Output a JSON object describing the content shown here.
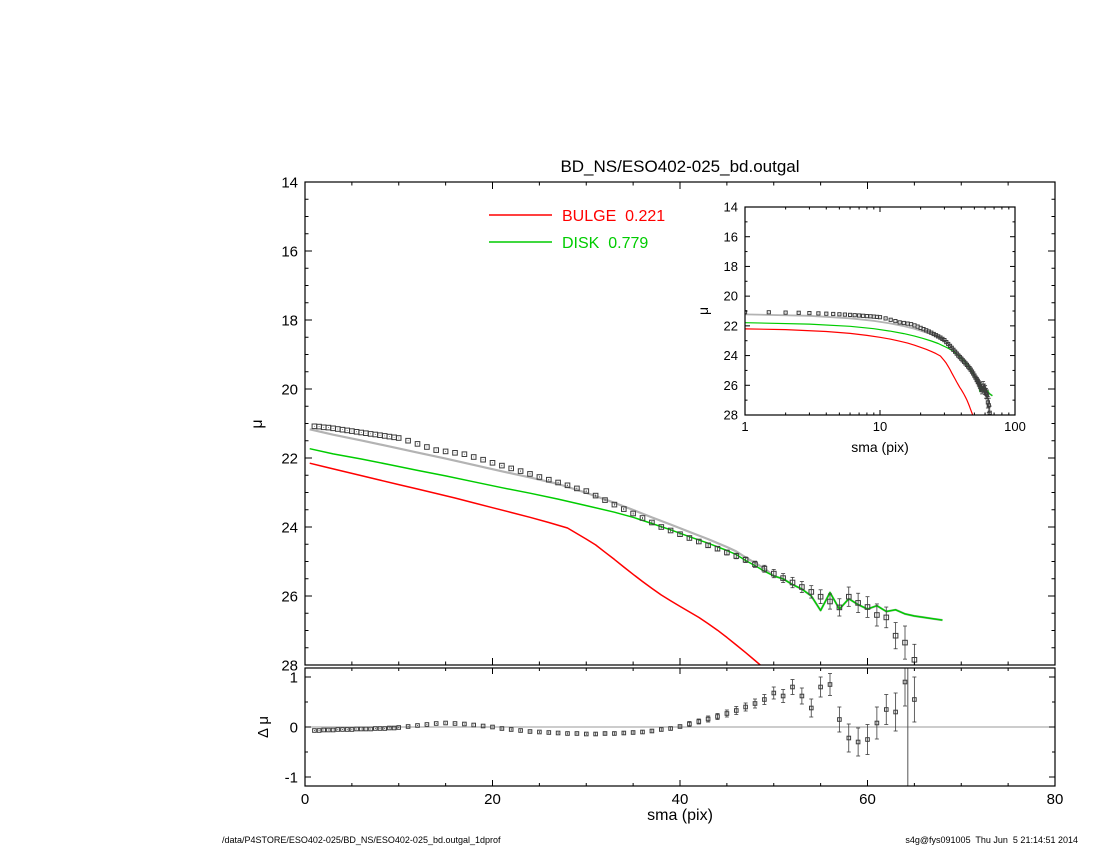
{
  "page": {
    "footer_left": "/data/P4STORE/ESO402-025/BD_NS/ESO402-025_bd.outgal_1dprof",
    "footer_right": "s4g@fys091005  Thu Jun  5 21:14:51 2014"
  },
  "colors": {
    "bulge": "#ff0000",
    "disk": "#00cc00",
    "data_points": "#3c3c3c",
    "total_model": "#b3b3b3",
    "axis": "#000000"
  },
  "chart_data": {
    "panels": [
      {
        "id": "main",
        "type": "line+scatter",
        "title": "BD_NS/ESO402-025_bd.outgal",
        "xlabel": "",
        "ylabel": "μ",
        "xlim": [
          0,
          80
        ],
        "xlog": false,
        "ytop": 14,
        "ybottom": 28,
        "xticks": [
          0,
          20,
          40,
          60,
          80
        ],
        "xminor": 5,
        "yticks": [
          14,
          16,
          18,
          20,
          22,
          24,
          26,
          28
        ],
        "yminor": 0.5,
        "legend": [
          {
            "label": "BULGE  0.221",
            "color": "#ff0000"
          },
          {
            "label": "DISK  0.779",
            "color": "#00cc00"
          }
        ],
        "series": [
          {
            "dataset": "total",
            "kind": "line",
            "color": "#b3b3b3",
            "width": 2.2,
            "name": "total-model-line"
          },
          {
            "dataset": "bulge",
            "kind": "line",
            "color": "#ff0000",
            "width": 1.5,
            "name": "bulge-line"
          },
          {
            "dataset": "disk",
            "kind": "line",
            "color": "#00cc00",
            "width": 1.5,
            "name": "disk-line"
          },
          {
            "dataset": "observed",
            "kind": "scatter",
            "color": "#3c3c3c",
            "size": 4.6,
            "errorbars": true,
            "name": "observed-points"
          }
        ]
      },
      {
        "id": "inset",
        "type": "line+scatter",
        "title": "",
        "xlabel": "sma (pix)",
        "ylabel": "μ",
        "xlim": [
          1,
          100
        ],
        "xlog": true,
        "ytop": 14,
        "ybottom": 28,
        "xticks": [
          1,
          10,
          100
        ],
        "yticks": [
          14,
          16,
          18,
          20,
          22,
          24,
          26,
          28
        ],
        "yminor": 1,
        "series": [
          {
            "dataset": "total",
            "kind": "line",
            "color": "#b3b3b3",
            "width": 1.8,
            "name": "total-model-line-inset"
          },
          {
            "dataset": "bulge",
            "kind": "line",
            "color": "#ff0000",
            "width": 1.2,
            "name": "bulge-line-inset"
          },
          {
            "dataset": "disk",
            "kind": "line",
            "color": "#00cc00",
            "width": 1.2,
            "name": "disk-line-inset"
          },
          {
            "dataset": "observed",
            "kind": "scatter",
            "color": "#3c3c3c",
            "size": 3.2,
            "errorbars": true,
            "name": "observed-points-inset"
          }
        ]
      },
      {
        "id": "residual",
        "type": "scatter",
        "title": "",
        "xlabel": "sma (pix)",
        "ylabel": "Δ μ",
        "xlim": [
          0,
          80
        ],
        "xlog": false,
        "ytop": 1.18,
        "ybottom": -1.18,
        "xticks": [
          0,
          20,
          40,
          60,
          80
        ],
        "xminor": 5,
        "yticks": [
          -1,
          0,
          1
        ],
        "yminor": 0.5,
        "hlines": [
          0
        ],
        "vlines": [
          64.3
        ],
        "series": [
          {
            "dataset": "residual",
            "kind": "scatter",
            "color": "#3c3c3c",
            "size": 3.6,
            "errorbars": true,
            "name": "residual-points"
          }
        ]
      }
    ],
    "datasets": {
      "observed": {
        "x": [
          1,
          1.5,
          2,
          2.5,
          3,
          3.5,
          4,
          4.5,
          5,
          5.5,
          6,
          6.5,
          7,
          7.5,
          8,
          8.5,
          9,
          9.5,
          10,
          11,
          12,
          13,
          14,
          15,
          16,
          17,
          18,
          19,
          20,
          21,
          22,
          23,
          24,
          25,
          26,
          27,
          28,
          29,
          30,
          31,
          32,
          33,
          34,
          35,
          36,
          37,
          38,
          39,
          40,
          41,
          42,
          43,
          44,
          45,
          46,
          47,
          48,
          49,
          50,
          51,
          52,
          53,
          54,
          55,
          56,
          57,
          58,
          59,
          60,
          61,
          62,
          63,
          64,
          65
        ],
        "y": [
          21.08,
          21.09,
          21.11,
          21.12,
          21.14,
          21.16,
          21.18,
          21.2,
          21.22,
          21.24,
          21.26,
          21.28,
          21.3,
          21.32,
          21.34,
          21.36,
          21.38,
          21.4,
          21.42,
          21.5,
          21.59,
          21.68,
          21.77,
          21.81,
          21.85,
          21.89,
          21.97,
          22.05,
          22.14,
          22.22,
          22.3,
          22.38,
          22.46,
          22.55,
          22.63,
          22.71,
          22.79,
          22.88,
          22.96,
          23.09,
          23.22,
          23.35,
          23.48,
          23.61,
          23.74,
          23.87,
          24.0,
          24.1,
          24.21,
          24.32,
          24.42,
          24.53,
          24.63,
          24.74,
          24.84,
          24.95,
          25.08,
          25.21,
          25.35,
          25.48,
          25.61,
          25.74,
          25.88,
          26.02,
          26.16,
          26.33,
          26.02,
          26.2,
          26.32,
          26.55,
          26.62,
          27.15,
          27.35,
          27.85
        ],
        "err": [
          0.01,
          0.01,
          0.01,
          0.01,
          0.01,
          0.01,
          0.01,
          0.01,
          0.01,
          0.01,
          0.01,
          0.01,
          0.01,
          0.01,
          0.01,
          0.01,
          0.01,
          0.01,
          0.01,
          0.01,
          0.01,
          0.01,
          0.01,
          0.01,
          0.01,
          0.01,
          0.01,
          0.01,
          0.01,
          0.02,
          0.02,
          0.02,
          0.02,
          0.02,
          0.02,
          0.02,
          0.02,
          0.02,
          0.02,
          0.03,
          0.03,
          0.03,
          0.03,
          0.03,
          0.03,
          0.04,
          0.04,
          0.04,
          0.04,
          0.05,
          0.05,
          0.06,
          0.06,
          0.07,
          0.08,
          0.08,
          0.09,
          0.1,
          0.12,
          0.13,
          0.15,
          0.16,
          0.18,
          0.2,
          0.22,
          0.25,
          0.28,
          0.28,
          0.3,
          0.32,
          0.3,
          0.38,
          0.48,
          0.45
        ]
      },
      "bulge": {
        "x": [
          0.5,
          2,
          4,
          6,
          8,
          10,
          12,
          14,
          16,
          18,
          20,
          22,
          24,
          26,
          28,
          30,
          31,
          32,
          33,
          34,
          35,
          36,
          37,
          38,
          39,
          40,
          41,
          42,
          43,
          44,
          45,
          46,
          47,
          48,
          49
        ],
        "y": [
          22.15,
          22.25,
          22.38,
          22.51,
          22.64,
          22.77,
          22.9,
          23.03,
          23.16,
          23.3,
          23.44,
          23.58,
          23.72,
          23.87,
          24.03,
          24.35,
          24.52,
          24.73,
          24.94,
          25.16,
          25.37,
          25.58,
          25.78,
          25.97,
          26.14,
          26.3,
          26.46,
          26.62,
          26.8,
          26.99,
          27.2,
          27.42,
          27.64,
          27.87,
          28.1
        ]
      },
      "disk": {
        "x": [
          0.5,
          3,
          6,
          9,
          12,
          15,
          18,
          21,
          24,
          27,
          30,
          33,
          35,
          37,
          39,
          41,
          43,
          45,
          46,
          47,
          48,
          49,
          50,
          51,
          52,
          53,
          54,
          55,
          56,
          57,
          58,
          59,
          60,
          61,
          62,
          63,
          64,
          65,
          66,
          67,
          68
        ],
        "y": [
          21.73,
          21.88,
          22.03,
          22.19,
          22.36,
          22.52,
          22.69,
          22.86,
          23.02,
          23.19,
          23.38,
          23.57,
          23.72,
          23.9,
          24.08,
          24.28,
          24.47,
          24.68,
          24.8,
          24.97,
          25.12,
          25.28,
          25.42,
          25.5,
          25.67,
          25.8,
          26.0,
          26.42,
          25.9,
          26.38,
          26.08,
          26.25,
          26.38,
          26.28,
          26.45,
          26.4,
          26.52,
          26.58,
          26.62,
          26.66,
          26.7
        ]
      },
      "residual": {
        "x": [
          1,
          1.5,
          2,
          2.5,
          3,
          3.5,
          4,
          4.5,
          5,
          5.5,
          6,
          6.5,
          7,
          7.5,
          8,
          8.5,
          9,
          9.5,
          10,
          11,
          12,
          13,
          14,
          15,
          16,
          17,
          18,
          19,
          20,
          21,
          22,
          23,
          24,
          25,
          26,
          27,
          28,
          29,
          30,
          31,
          32,
          33,
          34,
          35,
          36,
          37,
          38,
          39,
          40,
          41,
          42,
          43,
          44,
          45,
          46,
          47,
          48,
          49,
          50,
          51,
          52,
          53,
          54,
          55,
          56,
          57,
          58,
          59,
          60,
          61,
          62,
          63,
          64,
          65
        ],
        "y": [
          -0.07,
          -0.07,
          -0.06,
          -0.06,
          -0.06,
          -0.05,
          -0.05,
          -0.05,
          -0.05,
          -0.04,
          -0.04,
          -0.04,
          -0.04,
          -0.03,
          -0.03,
          -0.03,
          -0.02,
          -0.02,
          -0.01,
          0.01,
          0.03,
          0.05,
          0.07,
          0.08,
          0.07,
          0.06,
          0.04,
          0.02,
          0.0,
          -0.03,
          -0.05,
          -0.07,
          -0.09,
          -0.1,
          -0.11,
          -0.12,
          -0.13,
          -0.13,
          -0.14,
          -0.14,
          -0.13,
          -0.13,
          -0.12,
          -0.11,
          -0.1,
          -0.08,
          -0.05,
          -0.03,
          0.01,
          0.06,
          0.11,
          0.16,
          0.21,
          0.27,
          0.33,
          0.4,
          0.47,
          0.55,
          0.68,
          0.62,
          0.8,
          0.62,
          0.38,
          0.8,
          0.85,
          0.15,
          -0.22,
          -0.3,
          -0.25,
          0.08,
          0.35,
          0.3,
          0.9,
          0.55
        ],
        "err": [
          0.01,
          0.01,
          0.01,
          0.01,
          0.01,
          0.01,
          0.01,
          0.01,
          0.01,
          0.01,
          0.01,
          0.01,
          0.01,
          0.01,
          0.01,
          0.01,
          0.01,
          0.01,
          0.01,
          0.01,
          0.01,
          0.01,
          0.01,
          0.01,
          0.01,
          0.01,
          0.01,
          0.01,
          0.01,
          0.02,
          0.02,
          0.02,
          0.02,
          0.02,
          0.02,
          0.02,
          0.02,
          0.02,
          0.02,
          0.03,
          0.03,
          0.03,
          0.03,
          0.03,
          0.03,
          0.04,
          0.04,
          0.04,
          0.04,
          0.05,
          0.05,
          0.06,
          0.06,
          0.07,
          0.08,
          0.08,
          0.09,
          0.1,
          0.12,
          0.13,
          0.15,
          0.16,
          0.18,
          0.2,
          0.22,
          0.25,
          0.28,
          0.28,
          0.3,
          0.32,
          0.3,
          0.38,
          0.48,
          0.45
        ]
      }
    }
  }
}
